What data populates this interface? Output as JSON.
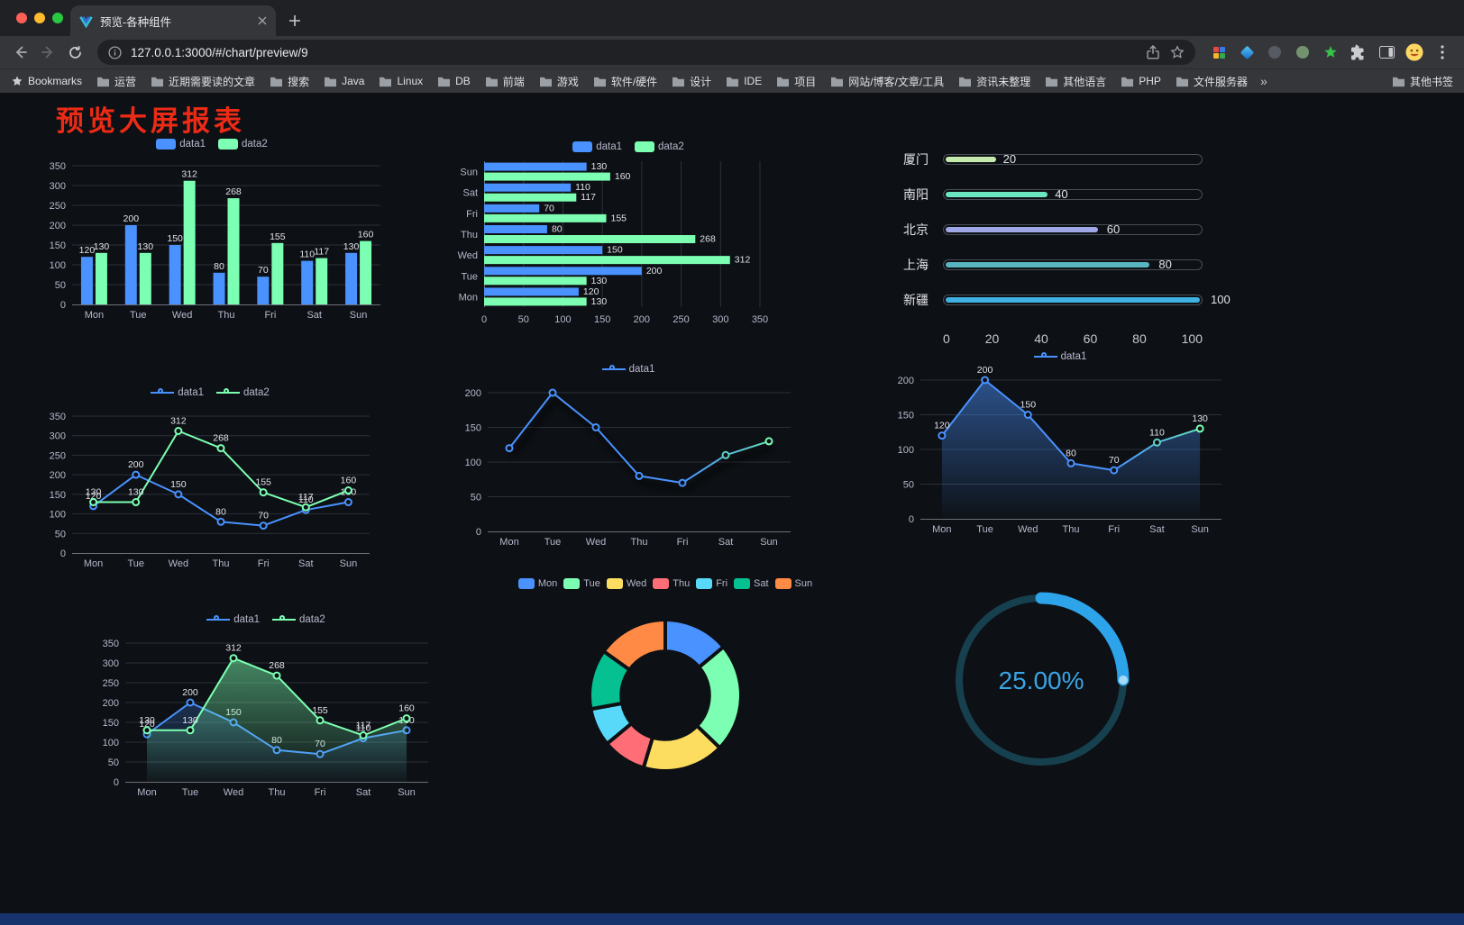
{
  "browser": {
    "tab": {
      "title": "预览-各种组件"
    },
    "address": {
      "url": "127.0.0.1:3000/#/chart/preview/9"
    },
    "traffic_lights": {
      "close": "#ff5f57",
      "minimize": "#febc2e",
      "zoom": "#28c840"
    },
    "bookmarks_bar": {
      "root_label": "Bookmarks",
      "folders": [
        "运营",
        "近期需要读的文章",
        "搜索",
        "Java",
        "Linux",
        "DB",
        "前端",
        "游戏",
        "软件/硬件",
        "设计",
        "IDE",
        "项目",
        "网站/博客/文章/工具",
        "资讯未整理",
        "其他语言",
        "PHP",
        "文件服务器"
      ],
      "overflow": "»",
      "other_label": "其他书签"
    }
  },
  "page": {
    "title": "预览大屏报表",
    "title_color": "#ec2b16",
    "background": "#0d1014",
    "footer_color": "#16336e"
  },
  "chart_defaults": {
    "axis_color": "#b9b8ce",
    "grid_color": "#2c313a",
    "label_color": "#e2e2ea",
    "data1_color": "#4992ff",
    "data2_color": "#7cffb2"
  },
  "chart_data": [
    {
      "type": "bar",
      "name": "grouped-vertical-bar",
      "legend_position": "top",
      "categories": [
        "Mon",
        "Tue",
        "Wed",
        "Thu",
        "Fri",
        "Sat",
        "Sun"
      ],
      "series": [
        {
          "name": "data1",
          "color": "#4992ff",
          "values": [
            120,
            200,
            150,
            80,
            70,
            110,
            130
          ]
        },
        {
          "name": "data2",
          "color": "#7cffb2",
          "values": [
            130,
            130,
            312,
            268,
            155,
            117,
            160
          ]
        }
      ],
      "ylim": [
        0,
        350
      ],
      "ystep": 50,
      "grid": true
    },
    {
      "type": "bar",
      "orientation": "horizontal",
      "name": "grouped-horizontal-bar",
      "legend_position": "top",
      "categories": [
        "Mon",
        "Tue",
        "Wed",
        "Thu",
        "Fri",
        "Sat",
        "Sun"
      ],
      "series": [
        {
          "name": "data1",
          "color": "#4992ff",
          "values": [
            120,
            200,
            150,
            80,
            70,
            110,
            130
          ]
        },
        {
          "name": "data2",
          "color": "#7cffb2",
          "values": [
            130,
            130,
            312,
            268,
            155,
            117,
            160
          ]
        }
      ],
      "xlim": [
        0,
        350
      ],
      "xstep": 50,
      "grid": true
    },
    {
      "type": "bar",
      "variant": "progress",
      "name": "city-progress-bars",
      "max": 100,
      "items": [
        {
          "label": "厦门",
          "value": 20,
          "color": "#c4ebad"
        },
        {
          "label": "南阳",
          "value": 40,
          "color": "#6be6c1"
        },
        {
          "label": "北京",
          "value": 60,
          "color": "#a0a7e6"
        },
        {
          "label": "上海",
          "value": 80,
          "color": "#58b5c0"
        },
        {
          "label": "新疆",
          "value": 100,
          "color": "#3fb1e3"
        }
      ],
      "ticks": [
        0,
        20,
        40,
        60,
        80,
        100
      ]
    },
    {
      "type": "line",
      "name": "two-series-line",
      "legend_position": "top",
      "labels": true,
      "categories": [
        "Mon",
        "Tue",
        "Wed",
        "Thu",
        "Fri",
        "Sat",
        "Sun"
      ],
      "series": [
        {
          "name": "data1",
          "color": "#4992ff",
          "values": [
            120,
            200,
            150,
            80,
            70,
            110,
            130
          ]
        },
        {
          "name": "data2",
          "color": "#7cffb2",
          "values": [
            130,
            130,
            312,
            268,
            155,
            117,
            160
          ]
        }
      ],
      "ylim": [
        0,
        350
      ],
      "ystep": 50,
      "grid": true
    },
    {
      "type": "line",
      "name": "gradient-line",
      "legend_position": "top",
      "labels": false,
      "shadow": true,
      "categories": [
        "Mon",
        "Tue",
        "Wed",
        "Thu",
        "Fri",
        "Sat",
        "Sun"
      ],
      "series": [
        {
          "name": "data1",
          "color": "#4992ff",
          "gradient_end": "#7cffb2",
          "values": [
            120,
            200,
            150,
            80,
            70,
            110,
            130
          ]
        }
      ],
      "ylim": [
        0,
        200
      ],
      "ystep": 50,
      "grid": true
    },
    {
      "type": "line",
      "name": "gradient-area-line",
      "legend_position": "top",
      "labels": true,
      "categories": [
        "Mon",
        "Tue",
        "Wed",
        "Thu",
        "Fri",
        "Sat",
        "Sun"
      ],
      "series": [
        {
          "name": "data1",
          "color": "#4992ff",
          "gradient_end": "#7cffb2",
          "area": true,
          "values": [
            120,
            200,
            150,
            80,
            70,
            110,
            130
          ]
        }
      ],
      "ylim": [
        0,
        200
      ],
      "ystep": 50,
      "grid": true
    },
    {
      "type": "line",
      "name": "two-series-area-line",
      "legend_position": "top",
      "labels": true,
      "categories": [
        "Mon",
        "Tue",
        "Wed",
        "Thu",
        "Fri",
        "Sat",
        "Sun"
      ],
      "series": [
        {
          "name": "data1",
          "color": "#4992ff",
          "area": true,
          "values": [
            120,
            200,
            150,
            80,
            70,
            110,
            130
          ]
        },
        {
          "name": "data2",
          "color": "#7cffb2",
          "area": true,
          "values": [
            130,
            130,
            312,
            268,
            155,
            117,
            160
          ]
        }
      ],
      "ylim": [
        0,
        350
      ],
      "ystep": 50,
      "grid": true
    },
    {
      "type": "pie",
      "name": "weekday-donut",
      "legend_position": "top",
      "inner_ratio": 0.58,
      "labels": [
        "Mon",
        "Tue",
        "Wed",
        "Thu",
        "Fri",
        "Sat",
        "Sun"
      ],
      "values": [
        120,
        200,
        150,
        80,
        70,
        110,
        130
      ],
      "colors": [
        "#4992ff",
        "#7cffb2",
        "#fddd60",
        "#ff6e76",
        "#58d9f9",
        "#05c091",
        "#ff8a45"
      ]
    },
    {
      "type": "gauge",
      "name": "percent-ring",
      "percent": 25,
      "display": "25.00%",
      "color": "#2da4ea",
      "track_color": "#17404f",
      "text_color": "#3aa4e4"
    }
  ]
}
